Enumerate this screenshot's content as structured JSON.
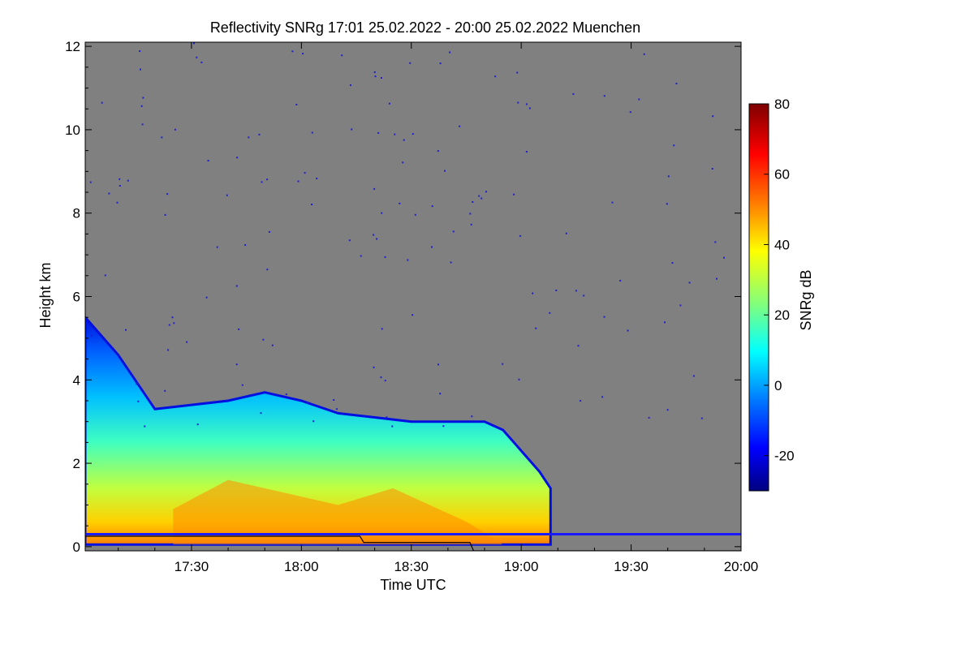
{
  "chart_data": {
    "type": "heatmap",
    "title": "Reflectivity SNRg   17:01 25.02.2022 - 20:00 25.02.2022 Muenchen",
    "xlabel": "Time UTC",
    "ylabel": "Height km",
    "colorbar_label": "SNRg dB",
    "x_range_minutes": [
      1021,
      1200
    ],
    "x_ticks": [
      {
        "label": "17:30",
        "minutes": 1050
      },
      {
        "label": "18:00",
        "minutes": 1080
      },
      {
        "label": "18:30",
        "minutes": 1110
      },
      {
        "label": "19:00",
        "minutes": 1140
      },
      {
        "label": "19:30",
        "minutes": 1170
      },
      {
        "label": "20:00",
        "minutes": 1200
      }
    ],
    "ylim": [
      -0.1,
      12.1
    ],
    "y_ticks": [
      0,
      2,
      4,
      6,
      8,
      10,
      12
    ],
    "colorbar_range": [
      -30,
      80
    ],
    "colorbar_ticks": [
      -20,
      0,
      20,
      40,
      60,
      80
    ],
    "background_color": "#808080",
    "echo_top_profile_km": [
      [
        1021,
        5.5
      ],
      [
        1030,
        4.6
      ],
      [
        1040,
        3.3
      ],
      [
        1050,
        3.4
      ],
      [
        1060,
        3.5
      ],
      [
        1070,
        3.7
      ],
      [
        1080,
        3.5
      ],
      [
        1090,
        3.2
      ],
      [
        1100,
        3.1
      ],
      [
        1110,
        3.0
      ],
      [
        1120,
        3.0
      ],
      [
        1130,
        3.0
      ],
      [
        1135,
        2.8
      ],
      [
        1140,
        2.3
      ],
      [
        1145,
        1.8
      ],
      [
        1148,
        1.4
      ]
    ],
    "melting_layer_km": [
      [
        1021,
        0.25
      ],
      [
        1050,
        0.25
      ],
      [
        1060,
        0.25
      ],
      [
        1080,
        0.25
      ],
      [
        1096,
        0.25
      ],
      [
        1097,
        0.1
      ],
      [
        1126,
        0.1
      ],
      [
        1127,
        -0.1
      ],
      [
        1200,
        -0.1
      ]
    ],
    "blue_line_km": 0.3,
    "colormap": [
      "#00007f",
      "#0000ff",
      "#007fff",
      "#00ffff",
      "#7fff7f",
      "#ffff00",
      "#ff7f00",
      "#ff0000",
      "#7f0000"
    ]
  }
}
